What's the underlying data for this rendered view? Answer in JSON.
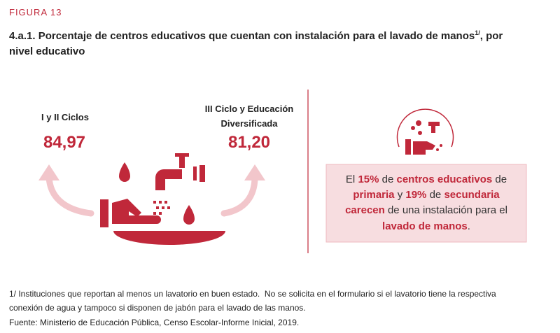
{
  "figure_label": "FIGURA 13",
  "title": {
    "line1": "4.a.1. Porcentaje de centros educativos que cuentan con instalación para el lavado de manos",
    "footnote_ref": "1/",
    "line1_end": ", por",
    "line2": "nivel educativo"
  },
  "stats": [
    {
      "label_lines": [
        "I y II Ciclos"
      ],
      "value": "84,97"
    },
    {
      "label_lines": [
        "III Ciclo y Educación",
        "Diversificada"
      ],
      "value": "81,20"
    }
  ],
  "callout": {
    "lines": [
      [
        "El ",
        "15%",
        " de ",
        "centros educativos",
        " de"
      ],
      [
        "primaria",
        " y ",
        "19%",
        " de ",
        "secundaria"
      ],
      [
        "carecen",
        " de una instalación para el"
      ],
      [
        "lavado de manos",
        "."
      ]
    ]
  },
  "notes": [
    "1/ Instituciones que reportan al menos un lavatorio en buen estado.  No se solicita en el formulario si el lavatorio tiene la respectiva",
    "conexión de agua y tampoco si disponen de jabón para el lavado de las manos.",
    "Fuente: Ministerio de Educación Pública, Censo Escolar-Informe Inicial, 2019."
  ]
}
